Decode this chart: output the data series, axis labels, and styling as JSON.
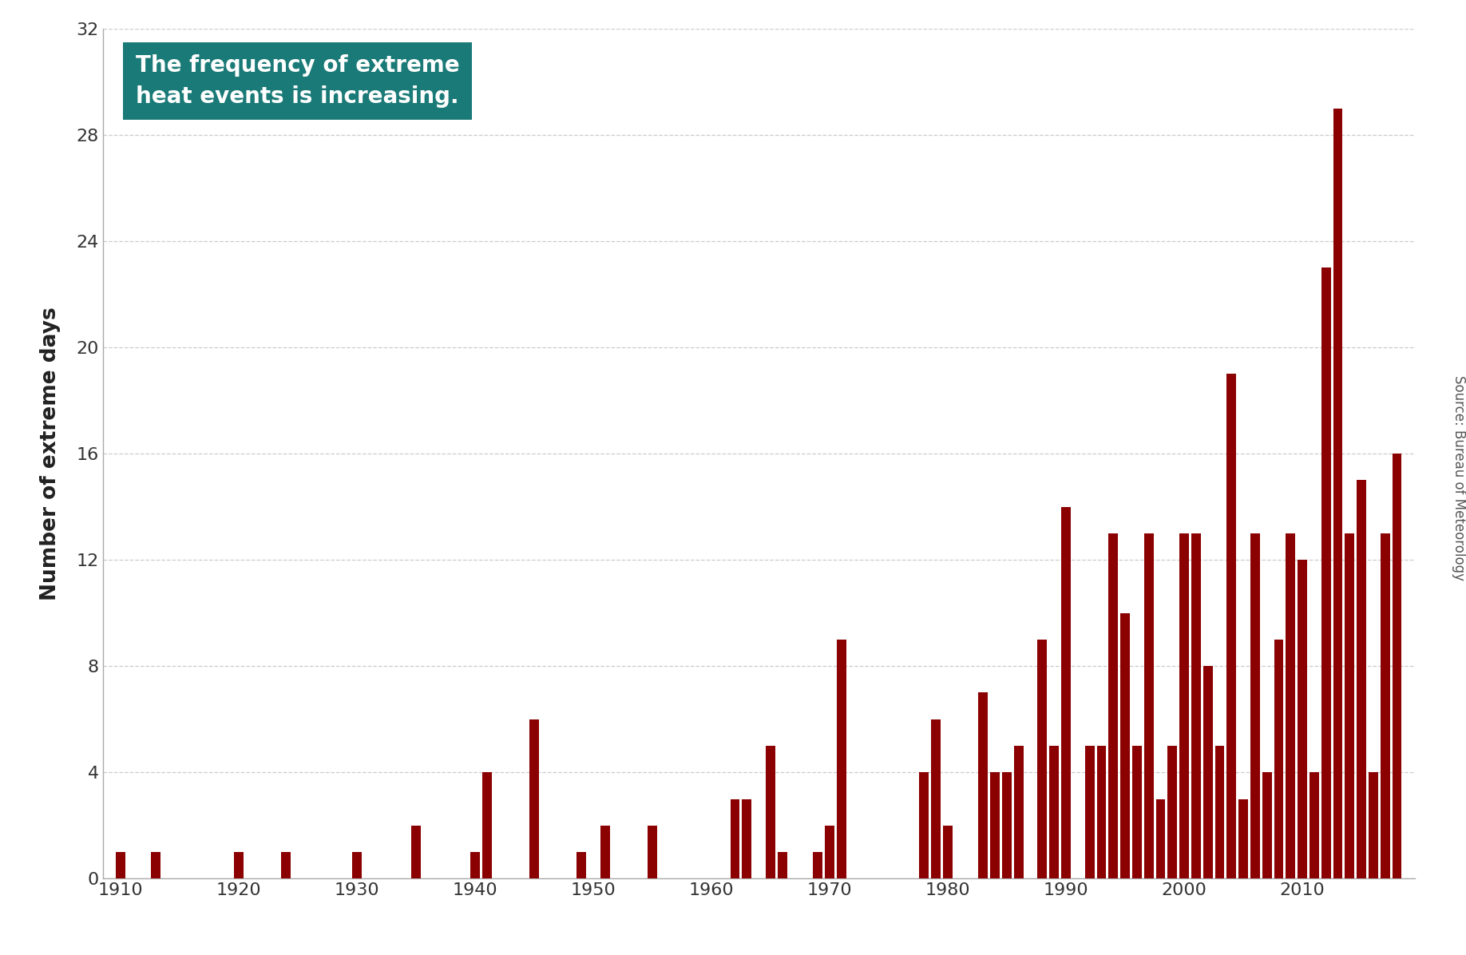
{
  "bar_color": "#8B0000",
  "bg_color": "#ffffff",
  "ylabel": "Number of extreme days",
  "annotation_text": "The frequency of extreme\nheat events is increasing.",
  "annotation_bg": "#1a7a77",
  "annotation_text_color": "#ffffff",
  "source_text": "Source: Bureau of Meteorology",
  "yticks": [
    0,
    4,
    8,
    12,
    16,
    20,
    24,
    28,
    32
  ],
  "xticks": [
    1910,
    1920,
    1930,
    1940,
    1950,
    1960,
    1970,
    1980,
    1990,
    2000,
    2010
  ],
  "ylim": [
    0,
    32
  ],
  "xlim": [
    1908.5,
    2019.5
  ],
  "years": [
    1910,
    1911,
    1912,
    1913,
    1914,
    1915,
    1916,
    1917,
    1918,
    1919,
    1920,
    1921,
    1922,
    1923,
    1924,
    1925,
    1926,
    1927,
    1928,
    1929,
    1930,
    1931,
    1932,
    1933,
    1934,
    1935,
    1936,
    1937,
    1938,
    1939,
    1940,
    1941,
    1942,
    1943,
    1944,
    1945,
    1946,
    1947,
    1948,
    1949,
    1950,
    1951,
    1952,
    1953,
    1954,
    1955,
    1956,
    1957,
    1958,
    1959,
    1960,
    1961,
    1962,
    1963,
    1964,
    1965,
    1966,
    1967,
    1968,
    1969,
    1970,
    1971,
    1972,
    1973,
    1974,
    1975,
    1976,
    1977,
    1978,
    1979,
    1980,
    1981,
    1982,
    1983,
    1984,
    1985,
    1986,
    1987,
    1988,
    1989,
    1990,
    1991,
    1992,
    1993,
    1994,
    1995,
    1996,
    1997,
    1998,
    1999,
    2000,
    2001,
    2002,
    2003,
    2004,
    2005,
    2006,
    2007,
    2008,
    2009,
    2010,
    2011,
    2012,
    2013,
    2014,
    2015,
    2016,
    2017,
    2018
  ],
  "values": [
    1,
    0,
    0,
    1,
    0,
    0,
    0,
    0,
    0,
    0,
    1,
    0,
    0,
    0,
    1,
    0,
    0,
    0,
    0,
    0,
    1,
    0,
    0,
    0,
    0,
    2,
    0,
    0,
    0,
    0,
    1,
    4,
    0,
    0,
    0,
    6,
    0,
    0,
    0,
    1,
    0,
    2,
    0,
    0,
    0,
    2,
    0,
    0,
    0,
    0,
    0,
    0,
    3,
    3,
    0,
    5,
    1,
    0,
    0,
    1,
    2,
    9,
    0,
    0,
    0,
    0,
    0,
    0,
    4,
    6,
    2,
    0,
    0,
    7,
    4,
    4,
    5,
    0,
    9,
    5,
    14,
    0,
    5,
    5,
    13,
    10,
    5,
    13,
    3,
    5,
    13,
    13,
    8,
    5,
    19,
    3,
    13,
    4,
    9,
    13,
    12,
    4,
    23,
    29,
    13,
    15,
    4,
    13,
    16
  ]
}
